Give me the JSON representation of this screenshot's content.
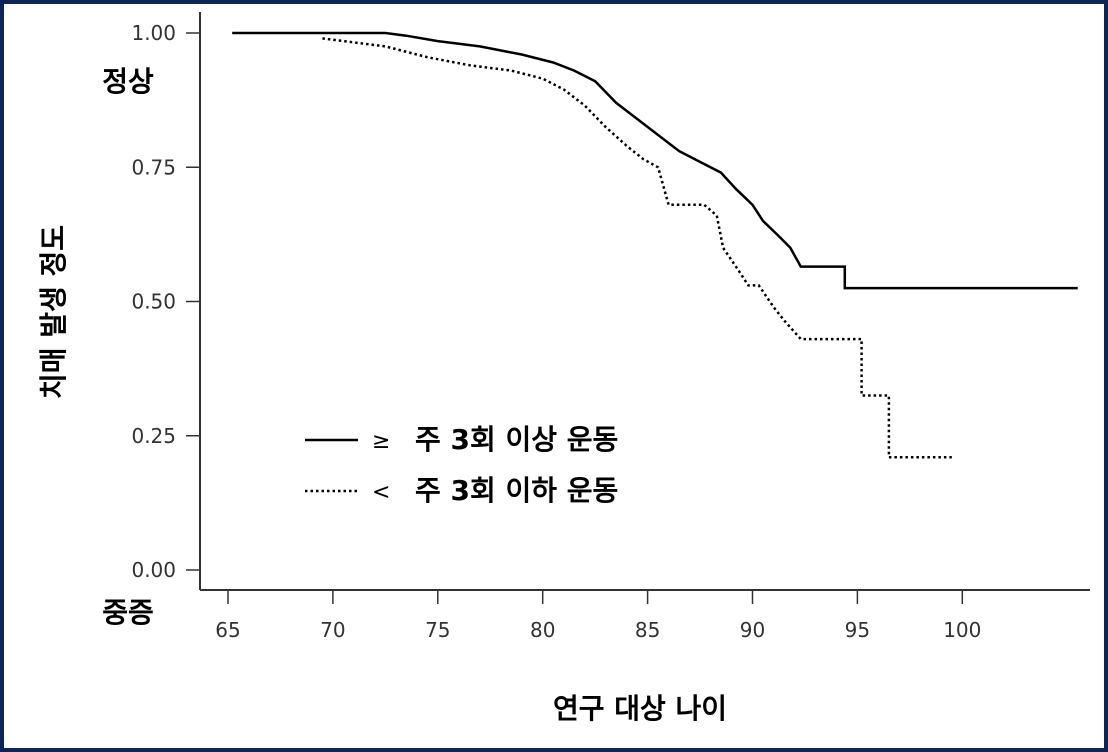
{
  "chart_data": {
    "type": "line",
    "title": "",
    "xlabel": "연구 대상 나이",
    "ylabel": "치매 발생 정도",
    "xlim": [
      65,
      105
    ],
    "ylim": [
      0,
      1
    ],
    "x_ticks": [
      "65",
      "70",
      "75",
      "80",
      "85",
      "90",
      "95",
      "100"
    ],
    "y_ticks": [
      "0.00",
      "0.25",
      "0.50",
      "0.75",
      "1.00"
    ],
    "y_top_note": "정상",
    "y_bottom_note": "중증",
    "legend_placement": "bottom-left",
    "grid": false,
    "series": [
      {
        "name": "주 3회 이상 운동",
        "symbol": "≥",
        "style": "solid",
        "color": "#000000",
        "points": [
          [
            65.2,
            1.0
          ],
          [
            72.5,
            1.0
          ],
          [
            73.5,
            0.995
          ],
          [
            75,
            0.985
          ],
          [
            77,
            0.975
          ],
          [
            79,
            0.96
          ],
          [
            80.5,
            0.945
          ],
          [
            81.5,
            0.93
          ],
          [
            82.5,
            0.91
          ],
          [
            83.5,
            0.87
          ],
          [
            84.5,
            0.84
          ],
          [
            85.5,
            0.81
          ],
          [
            86.5,
            0.78
          ],
          [
            87.5,
            0.76
          ],
          [
            88.5,
            0.74
          ],
          [
            89.2,
            0.71
          ],
          [
            90,
            0.68
          ],
          [
            90.5,
            0.65
          ],
          [
            91.3,
            0.62
          ],
          [
            91.8,
            0.6
          ],
          [
            92.3,
            0.565
          ],
          [
            94.4,
            0.565
          ],
          [
            94.4,
            0.525
          ],
          [
            105.5,
            0.525
          ]
        ]
      },
      {
        "name": "주 3회 이하 운동",
        "symbol": "<",
        "style": "dotted",
        "color": "#000000",
        "points": [
          [
            69.5,
            0.99
          ],
          [
            72.5,
            0.975
          ],
          [
            74.5,
            0.955
          ],
          [
            76.5,
            0.94
          ],
          [
            78.5,
            0.93
          ],
          [
            80,
            0.915
          ],
          [
            81,
            0.895
          ],
          [
            82,
            0.865
          ],
          [
            83,
            0.825
          ],
          [
            84,
            0.79
          ],
          [
            84.8,
            0.765
          ],
          [
            85.5,
            0.75
          ],
          [
            86,
            0.68
          ],
          [
            87.7,
            0.68
          ],
          [
            88.3,
            0.66
          ],
          [
            88.6,
            0.6
          ],
          [
            89.3,
            0.56
          ],
          [
            89.8,
            0.53
          ],
          [
            90.3,
            0.53
          ],
          [
            91,
            0.49
          ],
          [
            91.5,
            0.465
          ],
          [
            92.3,
            0.43
          ],
          [
            95.2,
            0.43
          ],
          [
            95.2,
            0.325
          ],
          [
            96.5,
            0.325
          ],
          [
            96.5,
            0.21
          ],
          [
            99.5,
            0.21
          ]
        ]
      }
    ]
  }
}
